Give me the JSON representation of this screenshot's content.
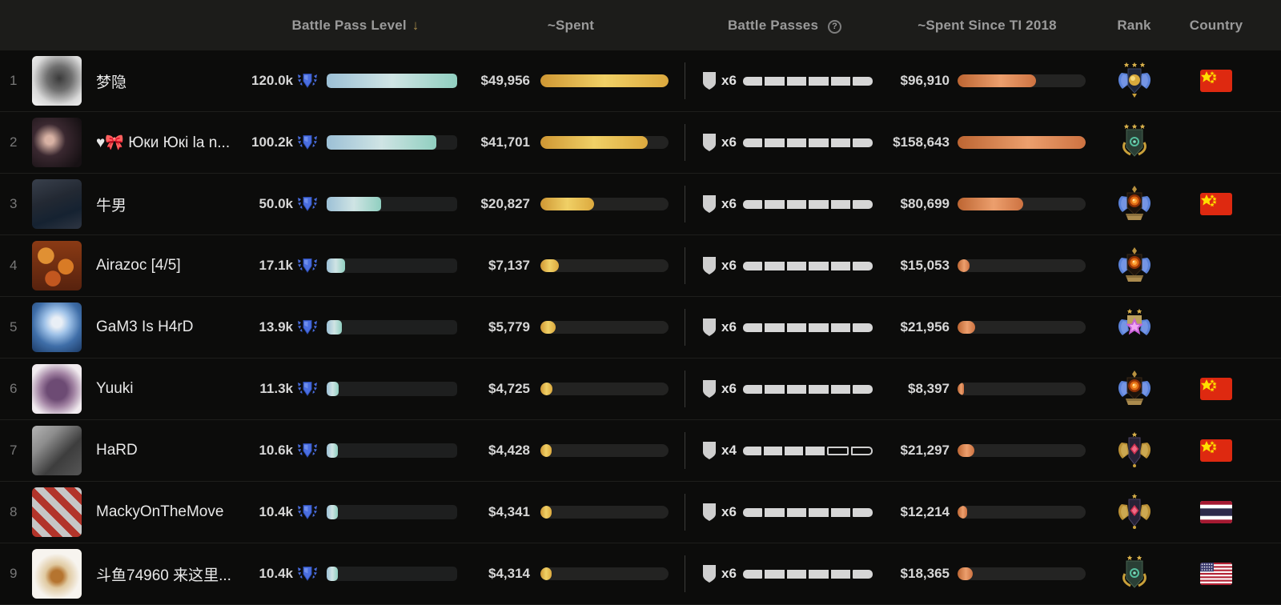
{
  "header": {
    "battle_pass_level": "Battle Pass Level",
    "sort_arrow": "↓",
    "spent": "~Spent",
    "battle_passes": "Battle Passes",
    "help_icon": "?",
    "spent_since": "~Spent Since TI 2018",
    "rank": "Rank",
    "country": "Country"
  },
  "colors": {
    "header_bg": "#1c1c1a",
    "row_bg": "#0c0c0b",
    "level_bar_gradient": [
      "#9cc0d6",
      "#90cfc0"
    ],
    "spent_bar_gradient": [
      "#cf9733",
      "#f0d066"
    ],
    "ti_bar_gradient": [
      "#bd6532",
      "#ec9f6d"
    ],
    "segment_fill": "#d6d6d6",
    "level_shield_blue": "#4a6ee0",
    "sort_arrow_gold": "#a5884a"
  },
  "rows": [
    {
      "position": "1",
      "name": "梦隐",
      "avatar": "ink",
      "level": "120.0k",
      "level_pct": 100,
      "spent": "$49,956",
      "spent_pct": 100,
      "bp_count": "x6",
      "bp_filled": 6,
      "bp_total": 6,
      "ti_spent": "$96,910",
      "ti_pct": 61,
      "medal": "immortal-orb",
      "medal_stars": 3,
      "flag": "cn"
    },
    {
      "position": "2",
      "name": "♥🎀 Юки Юкі la n...",
      "avatar": "dark-portrait",
      "level": "100.2k",
      "level_pct": 84,
      "spent": "$41,701",
      "spent_pct": 83.5,
      "bp_count": "x6",
      "bp_filled": 6,
      "bp_total": 6,
      "ti_spent": "$158,643",
      "ti_pct": 100,
      "medal": "green-crest",
      "medal_stars": 3,
      "flag": null
    },
    {
      "position": "3",
      "name": "牛男",
      "avatar": "dim-photo",
      "level": "50.0k",
      "level_pct": 42,
      "spent": "$20,827",
      "spent_pct": 41.7,
      "bp_count": "x6",
      "bp_filled": 6,
      "bp_total": 6,
      "ti_spent": "$80,699",
      "ti_pct": 51,
      "medal": "orange-wings",
      "medal_stars": 0,
      "flag": "cn"
    },
    {
      "position": "4",
      "name": "Airazoc [4/5]",
      "avatar": "food",
      "level": "17.1k",
      "level_pct": 14.2,
      "spent": "$7,137",
      "spent_pct": 14.3,
      "bp_count": "x6",
      "bp_filled": 6,
      "bp_total": 6,
      "ti_spent": "$15,053",
      "ti_pct": 9.5,
      "medal": "orange-wings",
      "medal_stars": 0,
      "flag": null
    },
    {
      "position": "5",
      "name": "GaM3 Is H4rD",
      "avatar": "maiden",
      "level": "13.9k",
      "level_pct": 11.6,
      "spent": "$5,779",
      "spent_pct": 11.6,
      "bp_count": "x6",
      "bp_filled": 6,
      "bp_total": 6,
      "ti_spent": "$21,956",
      "ti_pct": 13.8,
      "medal": "divine-star",
      "medal_stars": 2,
      "flag": null
    },
    {
      "position": "6",
      "name": "Yuuki",
      "avatar": "anime",
      "level": "11.3k",
      "level_pct": 9.4,
      "spent": "$4,725",
      "spent_pct": 9.5,
      "bp_count": "x6",
      "bp_filled": 6,
      "bp_total": 6,
      "ti_spent": "$8,397",
      "ti_pct": 5.3,
      "medal": "orange-wings",
      "medal_stars": 0,
      "flag": "cn"
    },
    {
      "position": "7",
      "name": "HaRD",
      "avatar": "wreck",
      "level": "10.6k",
      "level_pct": 8.8,
      "spent": "$4,428",
      "spent_pct": 8.9,
      "bp_count": "x4",
      "bp_filled": 4,
      "bp_total": 6,
      "ti_spent": "$21,297",
      "ti_pct": 13.4,
      "medal": "gold-red",
      "medal_stars": 1,
      "flag": "cn"
    },
    {
      "position": "8",
      "name": "MackyOnTheMove",
      "avatar": "red-team",
      "level": "10.4k",
      "level_pct": 8.7,
      "spent": "$4,341",
      "spent_pct": 8.7,
      "bp_count": "x6",
      "bp_filled": 6,
      "bp_total": 6,
      "ti_spent": "$12,214",
      "ti_pct": 7.7,
      "medal": "gold-red",
      "medal_stars": 1,
      "flag": "th"
    },
    {
      "position": "9",
      "name": "斗鱼74960 来这里...",
      "avatar": "mascot",
      "level": "10.4k",
      "level_pct": 8.7,
      "spent": "$4,314",
      "spent_pct": 8.6,
      "bp_count": "x6",
      "bp_filled": 6,
      "bp_total": 6,
      "ti_spent": "$18,365",
      "ti_pct": 11.6,
      "medal": "green-crest",
      "medal_stars": 2,
      "flag": "us"
    }
  ]
}
